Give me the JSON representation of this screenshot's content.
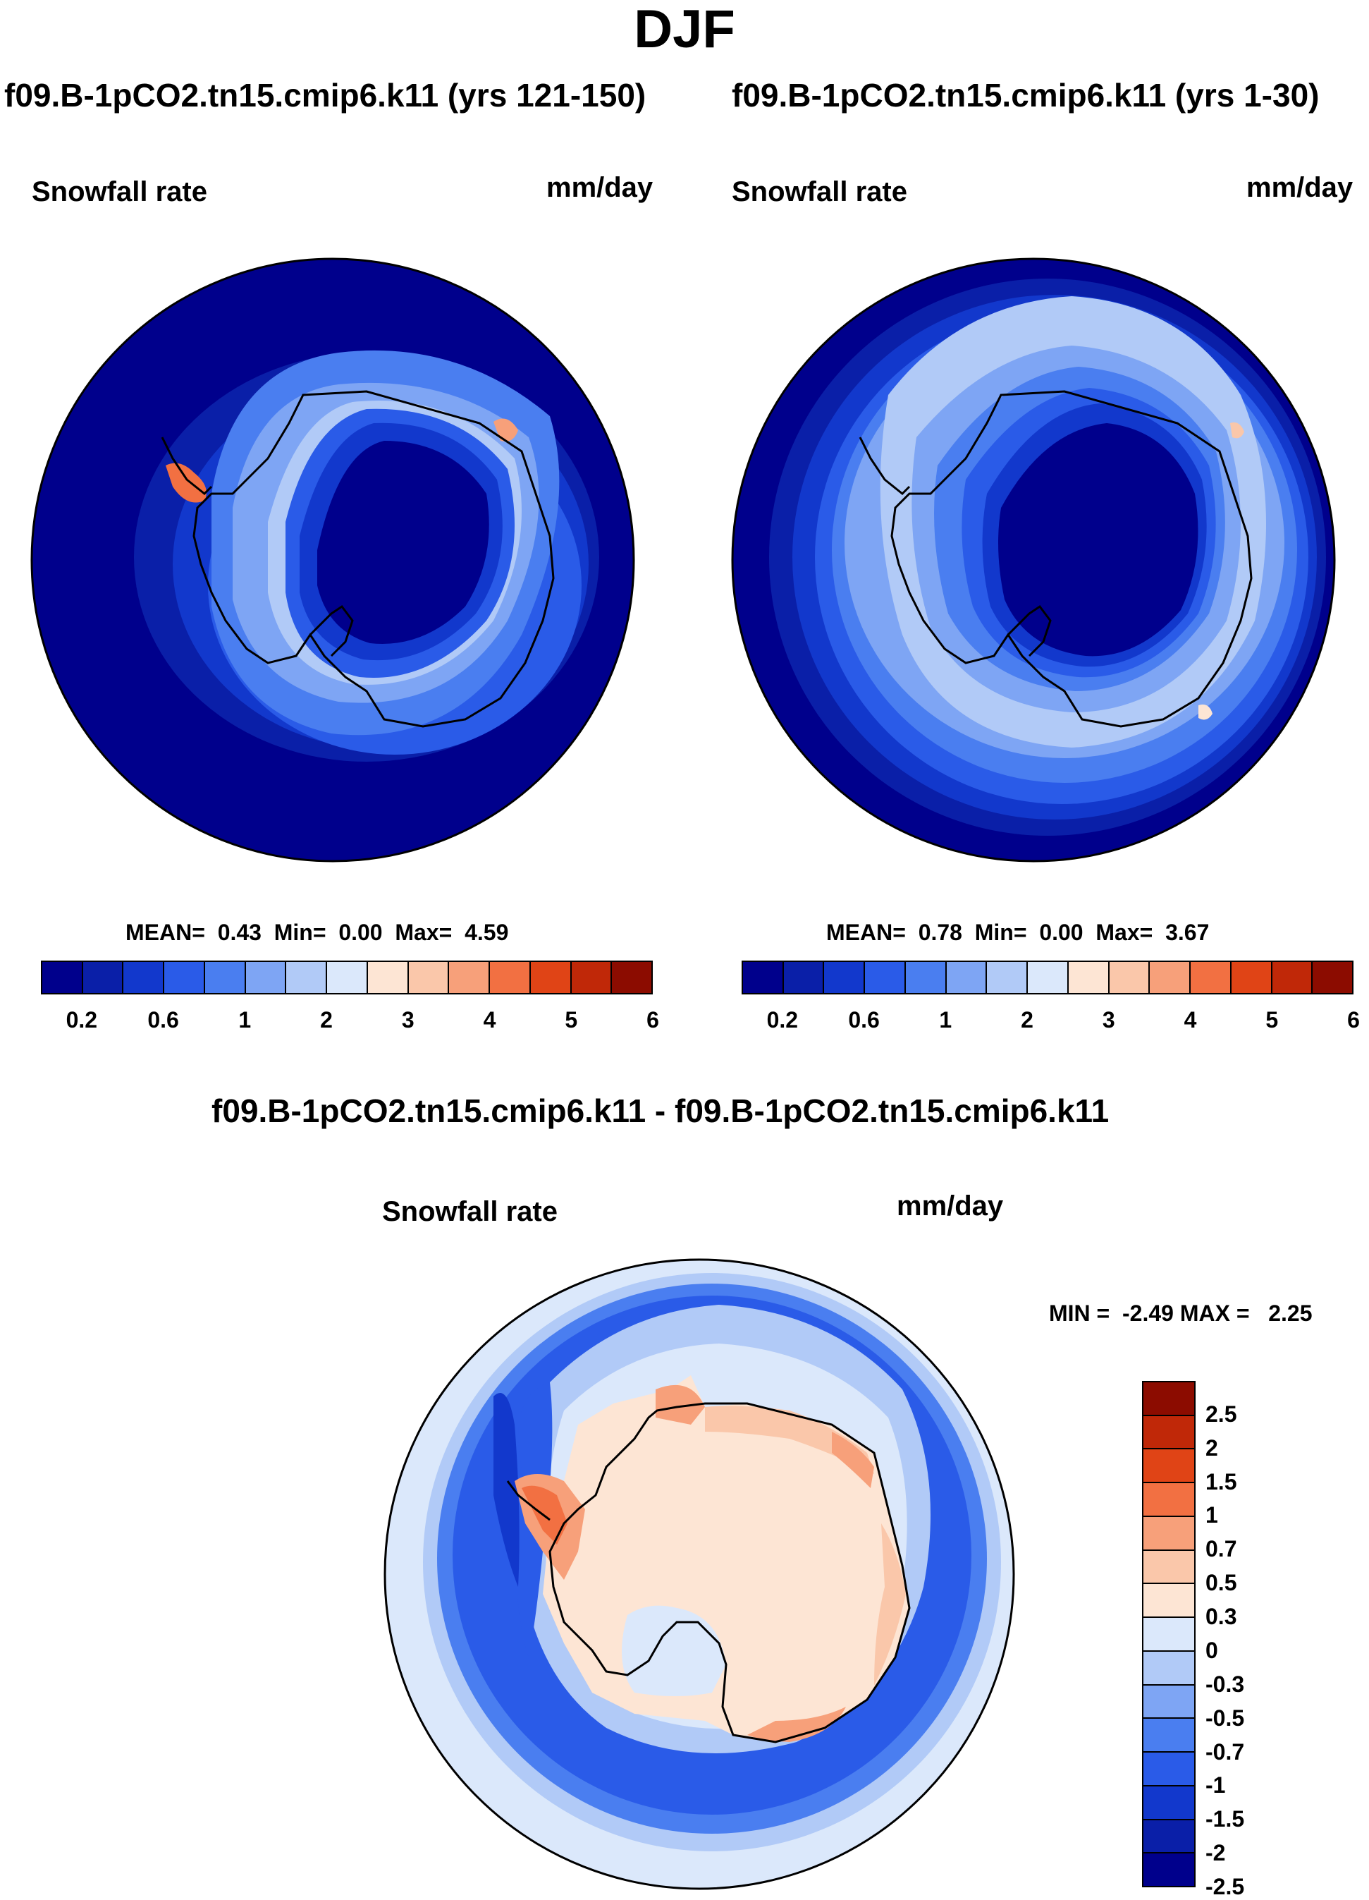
{
  "title": "DJF",
  "panels": [
    {
      "case_title": "f09.B-1pCO2.tn15.cmip6.k11 (yrs 121-150)",
      "variable": "Snowfall rate",
      "units": "mm/day",
      "stats": {
        "mean_label": "MEAN=",
        "mean": "0.43",
        "min_label": "Min=",
        "min": "0.00",
        "max_label": "Max=",
        "max": "4.59"
      }
    },
    {
      "case_title": "f09.B-1pCO2.tn15.cmip6.k11 (yrs 1-30)",
      "variable": "Snowfall rate",
      "units": "mm/day",
      "stats": {
        "mean_label": "MEAN=",
        "mean": "0.78",
        "min_label": "Min=",
        "min": "0.00",
        "max_label": "Max=",
        "max": "3.67"
      }
    }
  ],
  "diff_panel": {
    "case_title": "f09.B-1pCO2.tn15.cmip6.k11 - f09.B-1pCO2.tn15.cmip6.k11",
    "variable": "Snowfall rate",
    "units": "mm/day",
    "stats": {
      "min_label": "MIN =",
      "min": "-2.49",
      "max_label": "MAX =",
      "max": "2.25"
    }
  },
  "chart_data": [
    {
      "type": "heatmap",
      "title": "f09.B-1pCO2.tn15.cmip6.k11 (yrs 121-150)",
      "projection": "south polar stereographic",
      "colorbar": {
        "orientation": "horizontal",
        "tick_labels": [
          "0.2",
          "0.6",
          "1",
          "2",
          "3",
          "4",
          "5",
          "6"
        ],
        "colors": [
          "#00008c",
          "#0a1fa8",
          "#1238cc",
          "#2a5be8",
          "#4a7ef0",
          "#7ea5f4",
          "#b1caf7",
          "#dbe8fb",
          "#fde5d4",
          "#fac7aa",
          "#f7a07a",
          "#f27042",
          "#e04416",
          "#c02808",
          "#8c0c00"
        ]
      }
    },
    {
      "type": "heatmap",
      "title": "f09.B-1pCO2.tn15.cmip6.k11 (yrs 1-30)",
      "projection": "south polar stereographic",
      "colorbar": {
        "orientation": "horizontal",
        "tick_labels": [
          "0.2",
          "0.6",
          "1",
          "2",
          "3",
          "4",
          "5",
          "6"
        ],
        "colors": [
          "#00008c",
          "#0a1fa8",
          "#1238cc",
          "#2a5be8",
          "#4a7ef0",
          "#7ea5f4",
          "#b1caf7",
          "#dbe8fb",
          "#fde5d4",
          "#fac7aa",
          "#f7a07a",
          "#f27042",
          "#e04416",
          "#c02808",
          "#8c0c00"
        ]
      }
    },
    {
      "type": "heatmap",
      "title": "f09.B-1pCO2.tn15.cmip6.k11 - f09.B-1pCO2.tn15.cmip6.k11",
      "projection": "south polar stereographic",
      "colorbar": {
        "orientation": "vertical",
        "tick_labels": [
          "2.5",
          "2",
          "1.5",
          "1",
          "0.7",
          "0.5",
          "0.3",
          "0",
          "-0.3",
          "-0.5",
          "-0.7",
          "-1",
          "-1.5",
          "-2",
          "-2.5"
        ],
        "colors": [
          "#8c0c00",
          "#c02808",
          "#e04416",
          "#f27042",
          "#f7a07a",
          "#fac7aa",
          "#fde5d4",
          "#dbe8fb",
          "#b1caf7",
          "#7ea5f4",
          "#4a7ef0",
          "#2a5be8",
          "#1238cc",
          "#0a1fa8",
          "#00008c"
        ]
      }
    }
  ]
}
